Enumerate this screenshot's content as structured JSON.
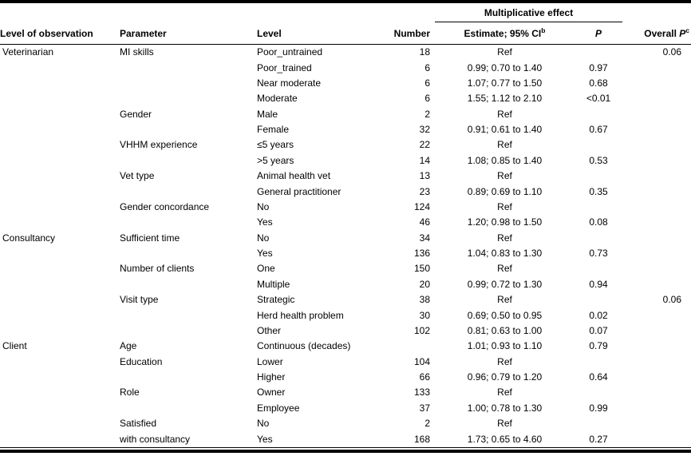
{
  "table": {
    "spanner": "Multiplicative effect",
    "headers": {
      "level_of_observation": "Level of observation",
      "parameter": "Parameter",
      "level": "Level",
      "number": "Number",
      "estimate": "Estimate; 95% CI",
      "estimate_sup": "b",
      "p": "P",
      "overall": "Overall ",
      "overall_p": "P",
      "overall_sup": "c"
    },
    "rows": [
      {
        "group": "Veterinarian",
        "parameter": "MI skills",
        "level": "Poor_untrained",
        "number": "18",
        "estimate": "Ref",
        "p": "",
        "overall": "0.06"
      },
      {
        "group": "",
        "parameter": "",
        "level": "Poor_trained",
        "number": "6",
        "estimate": "0.99; 0.70 to 1.40",
        "p": "0.97",
        "overall": ""
      },
      {
        "group": "",
        "parameter": "",
        "level": "Near moderate",
        "number": "6",
        "estimate": "1.07; 0.77 to 1.50",
        "p": "0.68",
        "overall": ""
      },
      {
        "group": "",
        "parameter": "",
        "level": "Moderate",
        "number": "6",
        "estimate": "1.55; 1.12 to 2.10",
        "p": "<0.01",
        "overall": ""
      },
      {
        "group": "",
        "parameter": "Gender",
        "level": "Male",
        "number": "2",
        "estimate": "Ref",
        "p": "",
        "overall": ""
      },
      {
        "group": "",
        "parameter": "",
        "level": "Female",
        "number": "32",
        "estimate": "0.91; 0.61 to 1.40",
        "p": "0.67",
        "overall": ""
      },
      {
        "group": "",
        "parameter": "VHHM experience",
        "level": "≤5 years",
        "number": "22",
        "estimate": "Ref",
        "p": "",
        "overall": ""
      },
      {
        "group": "",
        "parameter": "",
        "level": ">5 years",
        "number": "14",
        "estimate": "1.08; 0.85 to 1.40",
        "p": "0.53",
        "overall": ""
      },
      {
        "group": "",
        "parameter": "Vet type",
        "level": "Animal health vet",
        "number": "13",
        "estimate": "Ref",
        "p": "",
        "overall": ""
      },
      {
        "group": "",
        "parameter": "",
        "level": "General practitioner",
        "number": "23",
        "estimate": "0.89; 0.69 to 1.10",
        "p": "0.35",
        "overall": ""
      },
      {
        "group": "",
        "parameter": "Gender concordance",
        "level": "No",
        "number": "124",
        "estimate": "Ref",
        "p": "",
        "overall": ""
      },
      {
        "group": "",
        "parameter": "",
        "level": "Yes",
        "number": "46",
        "estimate": "1.20; 0.98 to 1.50",
        "p": "0.08",
        "overall": ""
      },
      {
        "group": "Consultancy",
        "parameter": "Sufficient time",
        "level": "No",
        "number": "34",
        "estimate": "Ref",
        "p": "",
        "overall": ""
      },
      {
        "group": "",
        "parameter": "",
        "level": "Yes",
        "number": "136",
        "estimate": "1.04; 0.83 to 1.30",
        "p": "0.73",
        "overall": ""
      },
      {
        "group": "",
        "parameter": "Number of clients",
        "level": "One",
        "number": "150",
        "estimate": "Ref",
        "p": "",
        "overall": ""
      },
      {
        "group": "",
        "parameter": "",
        "level": "Multiple",
        "number": "20",
        "estimate": "0.99; 0.72 to 1.30",
        "p": "0.94",
        "overall": ""
      },
      {
        "group": "",
        "parameter": "Visit type",
        "level": "Strategic",
        "number": "38",
        "estimate": "Ref",
        "p": "",
        "overall": "0.06"
      },
      {
        "group": "",
        "parameter": "",
        "level": "Herd health problem",
        "number": "30",
        "estimate": "0.69; 0.50 to 0.95",
        "p": "0.02",
        "overall": ""
      },
      {
        "group": "",
        "parameter": "",
        "level": "Other",
        "number": "102",
        "estimate": "0.81; 0.63 to 1.00",
        "p": "0.07",
        "overall": ""
      },
      {
        "group": "Client",
        "parameter": "Age",
        "level": "Continuous (decades)",
        "number": "",
        "estimate": "1.01; 0.93 to 1.10",
        "p": "0.79",
        "overall": ""
      },
      {
        "group": "",
        "parameter": "Education",
        "level": "Lower",
        "number": "104",
        "estimate": "Ref",
        "p": "",
        "overall": ""
      },
      {
        "group": "",
        "parameter": "",
        "level": "Higher",
        "number": "66",
        "estimate": "0.96; 0.79 to 1.20",
        "p": "0.64",
        "overall": ""
      },
      {
        "group": "",
        "parameter": "Role",
        "level": "Owner",
        "number": "133",
        "estimate": "Ref",
        "p": "",
        "overall": ""
      },
      {
        "group": "",
        "parameter": "",
        "level": "Employee",
        "number": "37",
        "estimate": "1.00; 0.78 to 1.30",
        "p": "0.99",
        "overall": ""
      },
      {
        "group": "",
        "parameter": "Satisfied",
        "level": "No",
        "number": "2",
        "estimate": "Ref",
        "p": "",
        "overall": ""
      },
      {
        "group": "",
        "parameter": "with consultancy",
        "level": "Yes",
        "number": "168",
        "estimate": "1.73; 0.65 to 4.60",
        "p": "0.27",
        "overall": ""
      }
    ]
  }
}
